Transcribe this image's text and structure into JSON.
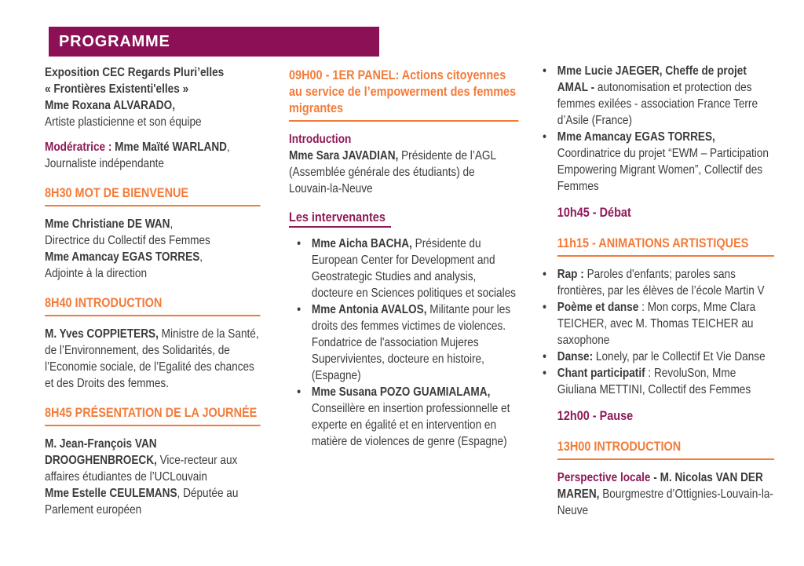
{
  "colors": {
    "banner_background": "#8B1056",
    "magenta_text": "#8D1A58",
    "orange": "#F37B3A",
    "dark_text": "#3B3B3B",
    "page_background": "#FFFFFF"
  },
  "header": {
    "title": "PROGRAMME"
  },
  "columns": [
    {
      "id": "col-1",
      "blocks": [
        {
          "type": "para",
          "segs": [
            {
              "t": "Exposition CEC Regards Pluri’elles",
              "s": "b",
              "br": true
            },
            {
              "t": "« Frontières Existenti'elles »",
              "s": "b",
              "br": true
            },
            {
              "t": "Mme Roxana ALVARADO,",
              "s": "b",
              "br": true
            },
            {
              "t": "Artiste plasticienne et son équipe",
              "s": "r"
            }
          ]
        },
        {
          "type": "para",
          "segs": [
            {
              "t": "Modératrice : ",
              "s": "mb"
            },
            {
              "t": "Mme Maïté WARLAND",
              "s": "b"
            },
            {
              "t": ",",
              "s": "r",
              "br": true
            },
            {
              "t": "Journaliste indépendante",
              "s": "r"
            }
          ]
        },
        {
          "type": "heading",
          "text": "8H30 MOT DE BIENVENUE"
        },
        {
          "type": "para",
          "segs": [
            {
              "t": "Mme Christiane DE WAN",
              "s": "b"
            },
            {
              "t": ",",
              "s": "r",
              "br": true
            },
            {
              "t": "Directrice du Collectif des Femmes",
              "s": "r",
              "br": true
            },
            {
              "t": "Mme Amancay EGAS TORRES",
              "s": "b"
            },
            {
              "t": ",",
              "s": "r",
              "br": true
            },
            {
              "t": "Adjointe à la direction",
              "s": "r"
            }
          ]
        },
        {
          "type": "heading",
          "text": "8H40 INTRODUCTION"
        },
        {
          "type": "para",
          "segs": [
            {
              "t": " M. Yves COPPIETERS, ",
              "s": "b"
            },
            {
              "t": "Ministre de la Santé, de l’Environnement, des Solidarités, de l’Economie sociale, de l’Egalité des chances et des Droits des femmes.",
              "s": "r"
            }
          ]
        },
        {
          "type": "heading",
          "text": "8H45 PRÉSENTATION DE LA JOURNÉE"
        },
        {
          "type": "para",
          "segs": [
            {
              "t": "M. Jean-François VAN DROOGHENBROECK, ",
              "s": "b"
            },
            {
              "t": "Vice-recteur aux affaires étudiantes de l’UCLouvain",
              "s": "r",
              "br": true
            },
            {
              "t": "Mme Estelle CEULEMANS",
              "s": "b"
            },
            {
              "t": ", Députée au Parlement européen",
              "s": "r"
            }
          ]
        }
      ]
    },
    {
      "id": "col-2",
      "blocks": [
        {
          "type": "heading",
          "text": "09H00 - 1ER PANEL: Actions citoyennes au service de l’empowerment des femmes migrantes"
        },
        {
          "type": "para",
          "segs": [
            {
              "t": "Introduction",
              "s": "mb",
              "br": true
            },
            {
              "t": "Mme Sara JAVADIAN, ",
              "s": "b"
            },
            {
              "t": "Présidente de l’AGL (Assemblée générale des étudiants) de Louvain-la-Neuve",
              "s": "r"
            }
          ]
        },
        {
          "type": "subheading",
          "text": "Les intervenantes"
        },
        {
          "type": "bullets",
          "items": [
            [
              {
                "t": "Mme Aicha BACHA, ",
                "s": "b"
              },
              {
                "t": "Présidente du European Center for Development and Geostrategic Studies and analysis, docteure en Sciences politiques et sociales",
                "s": "r"
              }
            ],
            [
              {
                "t": "Mme Antonia AVALOS, ",
                "s": "b"
              },
              {
                "t": "Militante pour les droits des femmes victimes de violences. Fondatrice de l'association Mujeres Supervivientes, docteure en histoire, (Espagne)",
                "s": "r"
              }
            ],
            [
              {
                "t": "Mme Susana POZO GUAMIALAMA, ",
                "s": "b"
              },
              {
                "t": "Conseillère en insertion professionnelle et experte en égalité et en intervention en matière de violences de genre (Espagne)",
                "s": "r"
              }
            ]
          ]
        }
      ]
    },
    {
      "id": "col-3",
      "blocks": [
        {
          "type": "bullets",
          "items": [
            [
              {
                "t": "Mme Lucie JAEGER, Cheffe de projet AMAL - ",
                "s": "b"
              },
              {
                "t": "autonomisation et protection des femmes exilées - association France Terre d’Asile (France)",
                "s": "r"
              }
            ],
            [
              {
                "t": "Mme Amancay EGAS TORRES, ",
                "s": "b"
              },
              {
                "t": "Coordinatrice du projet “EWM – Participation Empowering Migrant Women”, Collectif des Femmes",
                "s": "r"
              }
            ]
          ]
        },
        {
          "type": "time",
          "text": "10h45 - Débat"
        },
        {
          "type": "heading",
          "text": "11h15 - ANIMATIONS ARTISTIQUES"
        },
        {
          "type": "bullets",
          "items": [
            [
              {
                "t": "Rap : ",
                "s": "b"
              },
              {
                "t": "Paroles d'enfants; paroles sans frontières, par les élèves de l’école Martin V",
                "s": "r"
              }
            ],
            [
              {
                "t": "Poème et danse",
                "s": "b"
              },
              {
                "t": " : Mon corps, Mme Clara TEICHER, avec M. Thomas TEICHER au saxophone",
                "s": "r"
              }
            ],
            [
              {
                "t": "Danse: ",
                "s": "b"
              },
              {
                "t": "Lonely, par le Collectif Et Vie Danse",
                "s": "r"
              }
            ],
            [
              {
                "t": "Chant participatif",
                "s": "b"
              },
              {
                "t": " : RevoluSon, Mme Giuliana METTINI, Collectif des Femmes",
                "s": "r"
              }
            ]
          ]
        },
        {
          "type": "time",
          "text": "12h00 - Pause"
        },
        {
          "type": "heading",
          "text": "13H00 INTRODUCTION"
        },
        {
          "type": "para",
          "segs": [
            {
              "t": "Perspective locale",
              "s": "mb"
            },
            {
              "t": " - M. Nicolas VAN DER MAREN, ",
              "s": "b"
            },
            {
              "t": "Bourgmestre d’Ottignies-Louvain-la-Neuve",
              "s": "r"
            }
          ]
        }
      ]
    }
  ]
}
